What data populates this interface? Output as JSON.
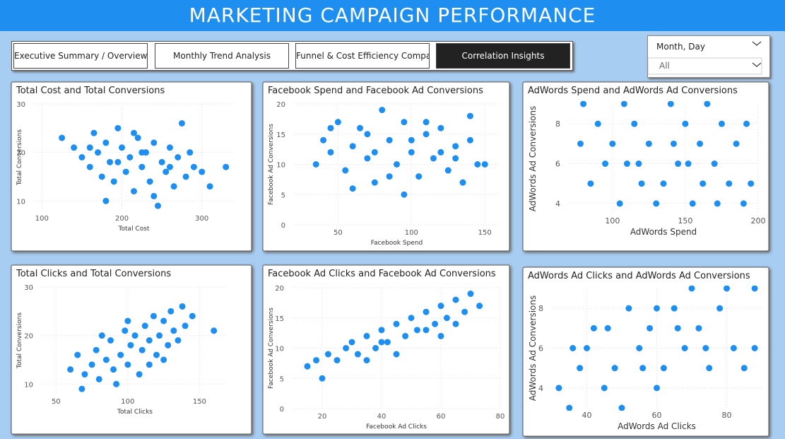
{
  "header": {
    "title": "MARKETING CAMPAIGN PERFORMANCE"
  },
  "tabs": [
    "Executive Summary / Overview",
    "Monthly Trend Analysis",
    "Funnel & Cost Efficiency Comparison",
    "Correlation Insights"
  ],
  "slicer": {
    "label": "Month, Day",
    "value": "All"
  },
  "chart_data": [
    {
      "type": "scatter",
      "title": "Total Cost and Total Conversions",
      "x_label": "Total Cost",
      "y_label": "Total Conversions",
      "color": "#1e8ff0",
      "grid": true,
      "xlim": [
        90,
        340
      ],
      "ylim": [
        8,
        30
      ],
      "xticks": [
        100,
        200,
        300
      ],
      "yticks": [
        10,
        20,
        30
      ],
      "x": [
        125,
        140,
        150,
        160,
        165,
        170,
        175,
        180,
        185,
        190,
        195,
        200,
        205,
        210,
        215,
        220,
        225,
        230,
        235,
        240,
        245,
        250,
        255,
        260,
        265,
        270,
        275,
        280,
        285,
        290,
        300,
        310,
        330,
        180,
        215,
        240,
        195,
        225,
        260,
        160
      ],
      "values": [
        23,
        21,
        19,
        17,
        24,
        20,
        15,
        22,
        18,
        14,
        25,
        21,
        16,
        19,
        12,
        23,
        17,
        20,
        14,
        22,
        9,
        18,
        16,
        21,
        13,
        19,
        26,
        15,
        20,
        17,
        16,
        13,
        17,
        10,
        24,
        11,
        18,
        20,
        17,
        21
      ]
    },
    {
      "type": "scatter",
      "title": "Facebook Spend and Facebook Ad Conversions",
      "x_label": "Facebook Spend",
      "y_label": "Facebook Ad Conversions",
      "color": "#1e8ff0",
      "grid": true,
      "xlim": [
        20,
        160
      ],
      "ylim": [
        0,
        20
      ],
      "xticks": [
        50,
        100,
        150
      ],
      "yticks": [
        0,
        5,
        10,
        15,
        20
      ],
      "x": [
        35,
        40,
        45,
        50,
        55,
        60,
        65,
        70,
        75,
        80,
        85,
        90,
        95,
        100,
        105,
        110,
        115,
        120,
        125,
        130,
        135,
        140,
        145,
        150,
        60,
        95,
        70,
        120,
        85,
        110,
        45,
        130,
        100,
        75,
        140
      ],
      "values": [
        10,
        14,
        12,
        17,
        9,
        13,
        16,
        11,
        7,
        19,
        14,
        10,
        17,
        12,
        8,
        15,
        11,
        16,
        9,
        13,
        7,
        18,
        10,
        10,
        6,
        5,
        15,
        12,
        8,
        17,
        16,
        11,
        14,
        12,
        14
      ]
    },
    {
      "type": "scatter",
      "title": "AdWords Spend and AdWords Ad Conversions",
      "x_label": "AdWords Spend",
      "y_label": "AdWords Ad Conversions",
      "color": "#1e8ff0",
      "grid": true,
      "xlim": [
        70,
        200
      ],
      "ylim": [
        3.5,
        9
      ],
      "xticks": [
        100,
        150,
        200
      ],
      "yticks": [
        4,
        6,
        8
      ],
      "x": [
        80,
        90,
        100,
        110,
        120,
        130,
        140,
        150,
        160,
        170,
        180,
        190,
        85,
        95,
        105,
        115,
        125,
        135,
        145,
        155,
        165,
        175,
        185,
        195,
        78,
        192,
        108,
        142,
        162,
        172,
        118,
        152
      ],
      "values": [
        9,
        8,
        7,
        6,
        5,
        4,
        9,
        8,
        7,
        6,
        5,
        4,
        5,
        6,
        4,
        8,
        7,
        5,
        6,
        4,
        9,
        8,
        7,
        5,
        7,
        8,
        9,
        7,
        5,
        4,
        6,
        6
      ]
    },
    {
      "type": "scatter",
      "title": "Total Clicks and Total Conversions",
      "x_label": "Total Clicks",
      "y_label": "Total Conversions",
      "color": "#1e8ff0",
      "grid": true,
      "xlim": [
        40,
        170
      ],
      "ylim": [
        8,
        30
      ],
      "xticks": [
        50,
        100,
        150
      ],
      "yticks": [
        10,
        20,
        30
      ],
      "x": [
        60,
        65,
        68,
        70,
        75,
        78,
        80,
        85,
        88,
        90,
        95,
        98,
        100,
        102,
        105,
        108,
        110,
        112,
        115,
        118,
        120,
        122,
        125,
        128,
        130,
        132,
        135,
        138,
        140,
        145,
        160,
        92,
        82,
        115,
        125,
        100
      ],
      "values": [
        13,
        16,
        9,
        12,
        14,
        17,
        11,
        15,
        19,
        13,
        16,
        21,
        14,
        18,
        20,
        12,
        17,
        22,
        19,
        24,
        16,
        20,
        23,
        18,
        25,
        21,
        19,
        26,
        22,
        24,
        21,
        10,
        20,
        14,
        15,
        23
      ]
    },
    {
      "type": "scatter",
      "title": "Facebook Ad Clicks and Facebook Ad Conversions",
      "x_label": "Facebook Ad Clicks",
      "y_label": "Facebook Ad Conversions",
      "color": "#1e8ff0",
      "grid": true,
      "xlim": [
        10,
        80
      ],
      "ylim": [
        0,
        20
      ],
      "xticks": [
        20,
        40,
        60,
        80
      ],
      "yticks": [
        0,
        5,
        10,
        15,
        20
      ],
      "x": [
        15,
        18,
        20,
        22,
        25,
        28,
        30,
        32,
        35,
        38,
        40,
        42,
        45,
        48,
        50,
        52,
        55,
        58,
        60,
        62,
        65,
        68,
        70,
        73,
        45,
        55,
        35,
        65,
        40,
        60
      ],
      "values": [
        7,
        8,
        5,
        9,
        8,
        10,
        11,
        9,
        12,
        10,
        13,
        11,
        14,
        12,
        15,
        13,
        16,
        14,
        17,
        15,
        18,
        16,
        19,
        17,
        9,
        13,
        8,
        14,
        11,
        12
      ]
    },
    {
      "type": "scatter",
      "title": "AdWords Ad Clicks and AdWords Ad Conversions",
      "x_label": "AdWords Ad Clicks",
      "y_label": "AdWords Ad Conversions",
      "color": "#1e8ff0",
      "grid": true,
      "xlim": [
        30,
        90
      ],
      "ylim": [
        3,
        9
      ],
      "xticks": [
        40,
        60,
        80
      ],
      "yticks": [
        4,
        6,
        8
      ],
      "x": [
        32,
        35,
        38,
        40,
        42,
        45,
        48,
        50,
        52,
        55,
        58,
        60,
        62,
        65,
        68,
        70,
        72,
        75,
        78,
        80,
        82,
        85,
        88,
        88,
        36,
        46,
        56,
        66,
        74,
        60
      ],
      "values": [
        4,
        3,
        5,
        6,
        7,
        4,
        5,
        3,
        8,
        6,
        7,
        4,
        5,
        8,
        6,
        9,
        7,
        5,
        8,
        9,
        6,
        5,
        9,
        6,
        6,
        7,
        5,
        7,
        6,
        8
      ]
    }
  ]
}
